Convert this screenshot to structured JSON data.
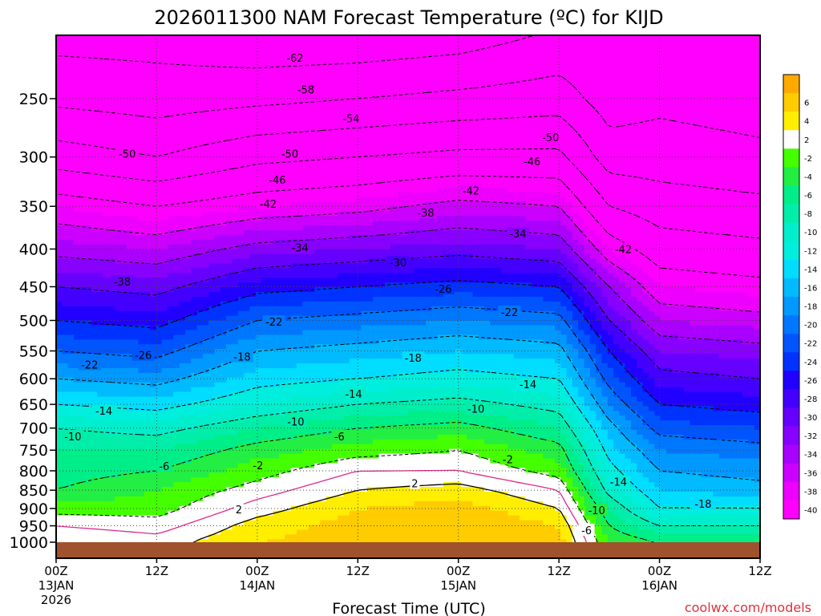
{
  "chart_data": {
    "type": "heatmap",
    "title": "2026011300 NAM Forecast Temperature (ºC) for KIJD",
    "xlabel": "Forecast Time (UTC)",
    "ylabel": "",
    "credit": "coolwx.com/models",
    "pressure_levels": [
      250,
      300,
      350,
      400,
      450,
      500,
      550,
      600,
      650,
      700,
      750,
      800,
      850,
      900,
      950,
      1000
    ],
    "ylim": [
      1000,
      200
    ],
    "y_scale": "log-pressure",
    "x_ticks": [
      {
        "hour": 0,
        "l1": "00Z",
        "l2": "13JAN",
        "l3": "2026"
      },
      {
        "hour": 12,
        "l1": "12Z",
        "l2": "",
        "l3": ""
      },
      {
        "hour": 24,
        "l1": "00Z",
        "l2": "14JAN",
        "l3": ""
      },
      {
        "hour": 36,
        "l1": "12Z",
        "l2": "",
        "l3": ""
      },
      {
        "hour": 48,
        "l1": "00Z",
        "l2": "15JAN",
        "l3": ""
      },
      {
        "hour": 60,
        "l1": "12Z",
        "l2": "",
        "l3": ""
      },
      {
        "hour": 72,
        "l1": "00Z",
        "l2": "16JAN",
        "l3": ""
      },
      {
        "hour": 84,
        "l1": "12Z",
        "l2": "",
        "l3": ""
      }
    ],
    "xlim": [
      0,
      84
    ],
    "grid": true,
    "legend": "right colorbar",
    "colorbar": [
      {
        "from": 6,
        "to": 8,
        "color": "#ffaa00",
        "label": ""
      },
      {
        "from": 4,
        "to": 6,
        "color": "#ffcc00",
        "label": "6"
      },
      {
        "from": 2,
        "to": 4,
        "color": "#ffee00",
        "label": "4"
      },
      {
        "from": -2,
        "to": 2,
        "color": "#ffffff",
        "label": "2"
      },
      {
        "from": -4,
        "to": -2,
        "color": "#44ff00",
        "label": "-2"
      },
      {
        "from": -6,
        "to": -4,
        "color": "#22ee44",
        "label": "-4"
      },
      {
        "from": -8,
        "to": -6,
        "color": "#00ee88",
        "label": "-6"
      },
      {
        "from": -10,
        "to": -8,
        "color": "#00eeaa",
        "label": "-8"
      },
      {
        "from": -12,
        "to": -10,
        "color": "#00eecc",
        "label": "-10"
      },
      {
        "from": -14,
        "to": -12,
        "color": "#00eedd",
        "label": "-12"
      },
      {
        "from": -16,
        "to": -14,
        "color": "#00ddff",
        "label": "-14"
      },
      {
        "from": -18,
        "to": -16,
        "color": "#00bbff",
        "label": "-16"
      },
      {
        "from": -20,
        "to": -18,
        "color": "#0099ff",
        "label": "-18"
      },
      {
        "from": -22,
        "to": -20,
        "color": "#0077ff",
        "label": "-20"
      },
      {
        "from": -24,
        "to": -22,
        "color": "#0055ff",
        "label": "-22"
      },
      {
        "from": -26,
        "to": -24,
        "color": "#0033ff",
        "label": "-24"
      },
      {
        "from": -28,
        "to": -26,
        "color": "#2200ff",
        "label": "-26"
      },
      {
        "from": -30,
        "to": -28,
        "color": "#4400ff",
        "label": "-28"
      },
      {
        "from": -32,
        "to": -30,
        "color": "#6600ff",
        "label": "-30"
      },
      {
        "from": -34,
        "to": -32,
        "color": "#8800ff",
        "label": "-32"
      },
      {
        "from": -36,
        "to": -34,
        "color": "#aa00ff",
        "label": "-34"
      },
      {
        "from": -38,
        "to": -36,
        "color": "#cc00ff",
        "label": "-36"
      },
      {
        "from": -40,
        "to": -38,
        "color": "#ee00ff",
        "label": "-38"
      },
      {
        "from": -70,
        "to": -40,
        "color": "#ff00ff",
        "label": "-40"
      }
    ],
    "ground_color": "#a0522d",
    "temperature_profiles": [
      {
        "hour": 0,
        "T": {
          "1000": 2,
          "950": 0,
          "900": -3,
          "850": -6,
          "800": -7,
          "750": -8,
          "700": -10,
          "650": -14,
          "600": -18,
          "550": -22,
          "500": -26,
          "450": -30,
          "400": -35,
          "350": -40,
          "300": -48,
          "250": -55,
          "200": -60
        }
      },
      {
        "hour": 12,
        "T": {
          "1000": 1,
          "950": -1,
          "900": -3,
          "850": -4,
          "800": -6,
          "750": -8,
          "700": -11,
          "650": -15,
          "600": -19,
          "550": -23,
          "500": -27,
          "450": -31,
          "400": -36,
          "350": -42,
          "300": -50,
          "250": -56,
          "200": -60
        }
      },
      {
        "hour": 24,
        "T": {
          "1000": 4,
          "950": 3,
          "900": 1,
          "850": -1,
          "800": -3,
          "750": -5,
          "700": -8,
          "650": -12,
          "600": -15,
          "550": -18,
          "500": -22,
          "450": -27,
          "400": -33,
          "350": -40,
          "300": -47,
          "250": -55,
          "200": -62
        }
      },
      {
        "hour": 36,
        "T": {
          "1000": 5,
          "950": 5,
          "900": 4,
          "850": 2,
          "800": 0,
          "750": -3,
          "700": -6,
          "650": -10,
          "600": -14,
          "550": -17,
          "500": -21,
          "450": -26,
          "400": -32,
          "350": -39,
          "300": -46,
          "250": -54,
          "200": -62
        }
      },
      {
        "hour": 48,
        "T": {
          "1000": 6,
          "950": 6,
          "900": 5,
          "850": 3,
          "800": 0,
          "750": -2,
          "700": -5,
          "650": -9,
          "600": -13,
          "550": -16,
          "500": -20,
          "450": -25,
          "400": -31,
          "350": -37,
          "300": -45,
          "250": -53,
          "200": -61
        }
      },
      {
        "hour": 60,
        "T": {
          "1000": 5,
          "950": 4,
          "900": 2,
          "850": 0,
          "800": -3,
          "750": -5,
          "700": -8,
          "650": -11,
          "600": -14,
          "550": -17,
          "500": -21,
          "450": -26,
          "400": -32,
          "350": -38,
          "300": -45,
          "250": -52,
          "200": -58
        }
      },
      {
        "hour": 66,
        "T": {
          "1000": -4,
          "950": -6,
          "900": -8,
          "850": -11,
          "800": -13,
          "750": -15,
          "700": -17,
          "650": -20,
          "600": -23,
          "550": -26,
          "500": -30,
          "450": -34,
          "400": -40,
          "350": -46,
          "300": -52,
          "250": -56,
          "200": -58
        }
      },
      {
        "hour": 72,
        "T": {
          "1000": -6,
          "950": -10,
          "900": -14,
          "850": -16,
          "800": -18,
          "750": -20,
          "700": -23,
          "650": -26,
          "600": -29,
          "550": -32,
          "500": -36,
          "450": -40,
          "400": -44,
          "350": -48,
          "300": -52,
          "250": -55,
          "200": -57
        }
      },
      {
        "hour": 84,
        "T": {
          "1000": -6,
          "950": -10,
          "900": -14,
          "850": -17,
          "800": -19,
          "750": -21,
          "700": -24,
          "650": -27,
          "600": -30,
          "550": -33,
          "500": -37,
          "450": -41,
          "400": -45,
          "350": -49,
          "300": -53,
          "250": -56,
          "200": -58
        }
      }
    ],
    "contour_labels": [
      {
        "text": "-62",
        "hour": 28.5,
        "p": 220
      },
      {
        "text": "-58",
        "hour": 29.8,
        "p": 243
      },
      {
        "text": "-54",
        "hour": 35.2,
        "p": 266
      },
      {
        "text": "-50",
        "hour": 59.0,
        "p": 282
      },
      {
        "text": "-50",
        "hour": 8.5,
        "p": 297
      },
      {
        "text": "-50",
        "hour": 27.9,
        "p": 297
      },
      {
        "text": "-46",
        "hour": 56.8,
        "p": 304
      },
      {
        "text": "-46",
        "hour": 26.4,
        "p": 322
      },
      {
        "text": "-42",
        "hour": 49.5,
        "p": 333
      },
      {
        "text": "-42",
        "hour": 25.3,
        "p": 347
      },
      {
        "text": "-38",
        "hour": 44.1,
        "p": 357
      },
      {
        "text": "-34",
        "hour": 55.1,
        "p": 381
      },
      {
        "text": "-42",
        "hour": 67.7,
        "p": 400
      },
      {
        "text": "-34",
        "hour": 29.1,
        "p": 398
      },
      {
        "text": "-30",
        "hour": 40.8,
        "p": 417
      },
      {
        "text": "-38",
        "hour": 7.9,
        "p": 443
      },
      {
        "text": "-26",
        "hour": 46.2,
        "p": 453
      },
      {
        "text": "-22",
        "hour": 54.1,
        "p": 487
      },
      {
        "text": "-22",
        "hour": 26.0,
        "p": 502
      },
      {
        "text": "-18",
        "hour": 22.2,
        "p": 560
      },
      {
        "text": "-18",
        "hour": 42.6,
        "p": 562
      },
      {
        "text": "-26",
        "hour": 10.4,
        "p": 557
      },
      {
        "text": "-22",
        "hour": 4.0,
        "p": 574
      },
      {
        "text": "-14",
        "hour": 56.3,
        "p": 610
      },
      {
        "text": "-14",
        "hour": 35.5,
        "p": 629
      },
      {
        "text": "-10",
        "hour": 50.1,
        "p": 659
      },
      {
        "text": "-14",
        "hour": 5.7,
        "p": 663
      },
      {
        "text": "-10",
        "hour": 28.6,
        "p": 686
      },
      {
        "text": "-10",
        "hour": 2.0,
        "p": 718
      },
      {
        "text": "-6",
        "hour": 33.8,
        "p": 718
      },
      {
        "text": "-2",
        "hour": 53.9,
        "p": 771
      },
      {
        "text": "-6",
        "hour": 12.9,
        "p": 788
      },
      {
        "text": "-2",
        "hour": 24.1,
        "p": 786
      },
      {
        "text": "-14",
        "hour": 67.1,
        "p": 828
      },
      {
        "text": "2",
        "hour": 42.8,
        "p": 832
      },
      {
        "text": "2",
        "hour": 21.8,
        "p": 902
      },
      {
        "text": "-18",
        "hour": 77.2,
        "p": 887
      },
      {
        "text": "-10",
        "hour": 64.5,
        "p": 905
      },
      {
        "text": "-6",
        "hour": 63.3,
        "p": 963
      }
    ]
  }
}
